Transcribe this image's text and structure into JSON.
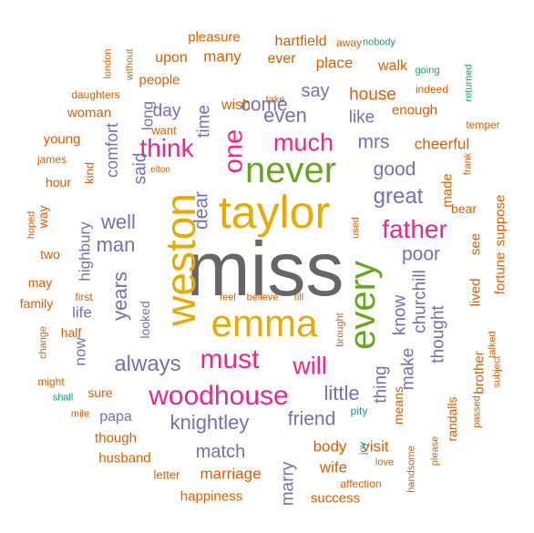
{
  "palette": {
    "dark_gray": "#666666",
    "gold": "#e6ab02",
    "magenta": "#e7298a",
    "green": "#66a61e",
    "purple": "#7570b3",
    "orange": "#d95f02",
    "teal": "#1b9e77",
    "brown": "#a6761d"
  },
  "words": [
    {
      "text": "miss",
      "color": "dark_gray",
      "vertical": false
    },
    {
      "text": "taylor",
      "color": "gold",
      "vertical": false
    },
    {
      "text": "weston",
      "color": "gold",
      "vertical": true
    },
    {
      "text": "emma",
      "color": "gold",
      "vertical": false
    },
    {
      "text": "never",
      "color": "green",
      "vertical": false
    },
    {
      "text": "every",
      "color": "green",
      "vertical": true
    },
    {
      "text": "woodhouse",
      "color": "magenta",
      "vertical": false
    },
    {
      "text": "must",
      "color": "magenta",
      "vertical": false
    },
    {
      "text": "will",
      "color": "magenta",
      "vertical": false
    },
    {
      "text": "father",
      "color": "magenta",
      "vertical": false
    },
    {
      "text": "much",
      "color": "magenta",
      "vertical": false
    },
    {
      "text": "one",
      "color": "magenta",
      "vertical": true
    },
    {
      "text": "think",
      "color": "magenta",
      "vertical": false
    },
    {
      "text": "great",
      "color": "purple",
      "vertical": false
    },
    {
      "text": "always",
      "color": "purple",
      "vertical": false
    },
    {
      "text": "knightley",
      "color": "purple",
      "vertical": false
    },
    {
      "text": "years",
      "color": "purple",
      "vertical": true
    },
    {
      "text": "man",
      "color": "purple",
      "vertical": false
    },
    {
      "text": "well",
      "color": "purple",
      "vertical": false
    },
    {
      "text": "little",
      "color": "purple",
      "vertical": false
    },
    {
      "text": "friend",
      "color": "purple",
      "vertical": false
    },
    {
      "text": "poor",
      "color": "purple",
      "vertical": false
    },
    {
      "text": "good",
      "color": "purple",
      "vertical": false
    },
    {
      "text": "mrs",
      "color": "purple",
      "vertical": false
    },
    {
      "text": "know",
      "color": "purple",
      "vertical": true
    },
    {
      "text": "churchill",
      "color": "purple",
      "vertical": true
    },
    {
      "text": "even",
      "color": "purple",
      "vertical": false
    },
    {
      "text": "come",
      "color": "purple",
      "vertical": false
    },
    {
      "text": "say",
      "color": "purple",
      "vertical": false
    },
    {
      "text": "like",
      "color": "purple",
      "vertical": false
    },
    {
      "text": "day",
      "color": "purple",
      "vertical": false
    },
    {
      "text": "dear",
      "color": "purple",
      "vertical": true
    },
    {
      "text": "time",
      "color": "purple",
      "vertical": true
    },
    {
      "text": "said",
      "color": "purple",
      "vertical": true
    },
    {
      "text": "comfort",
      "color": "purple",
      "vertical": true
    },
    {
      "text": "long",
      "color": "purple",
      "vertical": true
    },
    {
      "text": "thought",
      "color": "purple",
      "vertical": true
    },
    {
      "text": "thing",
      "color": "purple",
      "vertical": true
    },
    {
      "text": "make",
      "color": "purple",
      "vertical": true
    },
    {
      "text": "match",
      "color": "purple",
      "vertical": false
    },
    {
      "text": "marry",
      "color": "purple",
      "vertical": true
    },
    {
      "text": "highbury",
      "color": "purple",
      "vertical": true
    },
    {
      "text": "life",
      "color": "purple",
      "vertical": false
    },
    {
      "text": "now",
      "color": "purple",
      "vertical": true
    },
    {
      "text": "looked",
      "color": "purple",
      "vertical": true
    },
    {
      "text": "papa",
      "color": "purple",
      "vertical": false
    },
    {
      "text": "house",
      "color": "orange",
      "vertical": false
    },
    {
      "text": "cheerful",
      "color": "orange",
      "vertical": false
    },
    {
      "text": "place",
      "color": "orange",
      "vertical": false
    },
    {
      "text": "wish",
      "color": "orange",
      "vertical": false
    },
    {
      "text": "enough",
      "color": "orange",
      "vertical": false
    },
    {
      "text": "walk",
      "color": "orange",
      "vertical": false
    },
    {
      "text": "ever",
      "color": "orange",
      "vertical": false
    },
    {
      "text": "many",
      "color": "orange",
      "vertical": false
    },
    {
      "text": "upon",
      "color": "orange",
      "vertical": false
    },
    {
      "text": "hartfield",
      "color": "orange",
      "vertical": false
    },
    {
      "text": "pleasure",
      "color": "orange",
      "vertical": false
    },
    {
      "text": "people",
      "color": "orange",
      "vertical": false
    },
    {
      "text": "woman",
      "color": "orange",
      "vertical": false
    },
    {
      "text": "want",
      "color": "orange",
      "vertical": false
    },
    {
      "text": "young",
      "color": "orange",
      "vertical": false
    },
    {
      "text": "hour",
      "color": "orange",
      "vertical": false
    },
    {
      "text": "kind",
      "color": "orange",
      "vertical": true
    },
    {
      "text": "way",
      "color": "orange",
      "vertical": true
    },
    {
      "text": "two",
      "color": "orange",
      "vertical": false
    },
    {
      "text": "may",
      "color": "orange",
      "vertical": false
    },
    {
      "text": "family",
      "color": "orange",
      "vertical": false
    },
    {
      "text": "half",
      "color": "orange",
      "vertical": false
    },
    {
      "text": "sure",
      "color": "orange",
      "vertical": false
    },
    {
      "text": "though",
      "color": "orange",
      "vertical": false
    },
    {
      "text": "husband",
      "color": "orange",
      "vertical": false
    },
    {
      "text": "letter",
      "color": "orange",
      "vertical": false
    },
    {
      "text": "marriage",
      "color": "orange",
      "vertical": false
    },
    {
      "text": "happiness",
      "color": "orange",
      "vertical": false
    },
    {
      "text": "success",
      "color": "orange",
      "vertical": false
    },
    {
      "text": "body",
      "color": "orange",
      "vertical": false
    },
    {
      "text": "visit",
      "color": "orange",
      "vertical": false
    },
    {
      "text": "wife",
      "color": "orange",
      "vertical": false
    },
    {
      "text": "made",
      "color": "orange",
      "vertical": true
    },
    {
      "text": "bear",
      "color": "orange",
      "vertical": false
    },
    {
      "text": "suppose",
      "color": "orange",
      "vertical": true
    },
    {
      "text": "see",
      "color": "orange",
      "vertical": true
    },
    {
      "text": "lived",
      "color": "orange",
      "vertical": true
    },
    {
      "text": "fortune",
      "color": "orange",
      "vertical": true
    },
    {
      "text": "brother",
      "color": "orange",
      "vertical": true
    },
    {
      "text": "means",
      "color": "orange",
      "vertical": true
    },
    {
      "text": "randalls",
      "color": "orange",
      "vertical": true
    },
    {
      "text": "temper",
      "color": "orange",
      "vertical": false
    },
    {
      "text": "daughters",
      "color": "orange",
      "vertical": false
    },
    {
      "text": "indeed",
      "color": "orange",
      "vertical": false
    },
    {
      "text": "take",
      "color": "orange",
      "vertical": false
    },
    {
      "text": "away",
      "color": "orange",
      "vertical": false
    },
    {
      "text": "london",
      "color": "orange",
      "vertical": true
    },
    {
      "text": "james",
      "color": "orange",
      "vertical": false
    },
    {
      "text": "elton",
      "color": "orange",
      "vertical": false
    },
    {
      "text": "hoped",
      "color": "orange",
      "vertical": true
    },
    {
      "text": "first",
      "color": "orange",
      "vertical": false
    },
    {
      "text": "feel",
      "color": "orange",
      "vertical": false
    },
    {
      "text": "believe",
      "color": "orange",
      "vertical": false
    },
    {
      "text": "till",
      "color": "orange",
      "vertical": false
    },
    {
      "text": "change",
      "color": "orange",
      "vertical": true
    },
    {
      "text": "might",
      "color": "orange",
      "vertical": false
    },
    {
      "text": "mile",
      "color": "orange",
      "vertical": false
    },
    {
      "text": "affection",
      "color": "orange",
      "vertical": false
    },
    {
      "text": "love",
      "color": "orange",
      "vertical": false
    },
    {
      "text": "handsome",
      "color": "orange",
      "vertical": true
    },
    {
      "text": "please",
      "color": "orange",
      "vertical": true
    },
    {
      "text": "passed",
      "color": "orange",
      "vertical": true
    },
    {
      "text": "subject",
      "color": "orange",
      "vertical": true
    },
    {
      "text": "talked",
      "color": "orange",
      "vertical": true
    },
    {
      "text": "frank",
      "color": "orange",
      "vertical": true
    },
    {
      "text": "used",
      "color": "orange",
      "vertical": true
    },
    {
      "text": "brought",
      "color": "orange",
      "vertical": true
    },
    {
      "text": "without",
      "color": "brown",
      "vertical": true
    },
    {
      "text": "nobody",
      "color": "teal",
      "vertical": false
    },
    {
      "text": "going",
      "color": "teal",
      "vertical": false
    },
    {
      "text": "returned",
      "color": "teal",
      "vertical": true
    },
    {
      "text": "shall",
      "color": "teal",
      "vertical": false
    },
    {
      "text": "pity",
      "color": "teal",
      "vertical": false
    },
    {
      "text": "joy",
      "color": "teal",
      "vertical": true
    }
  ]
}
